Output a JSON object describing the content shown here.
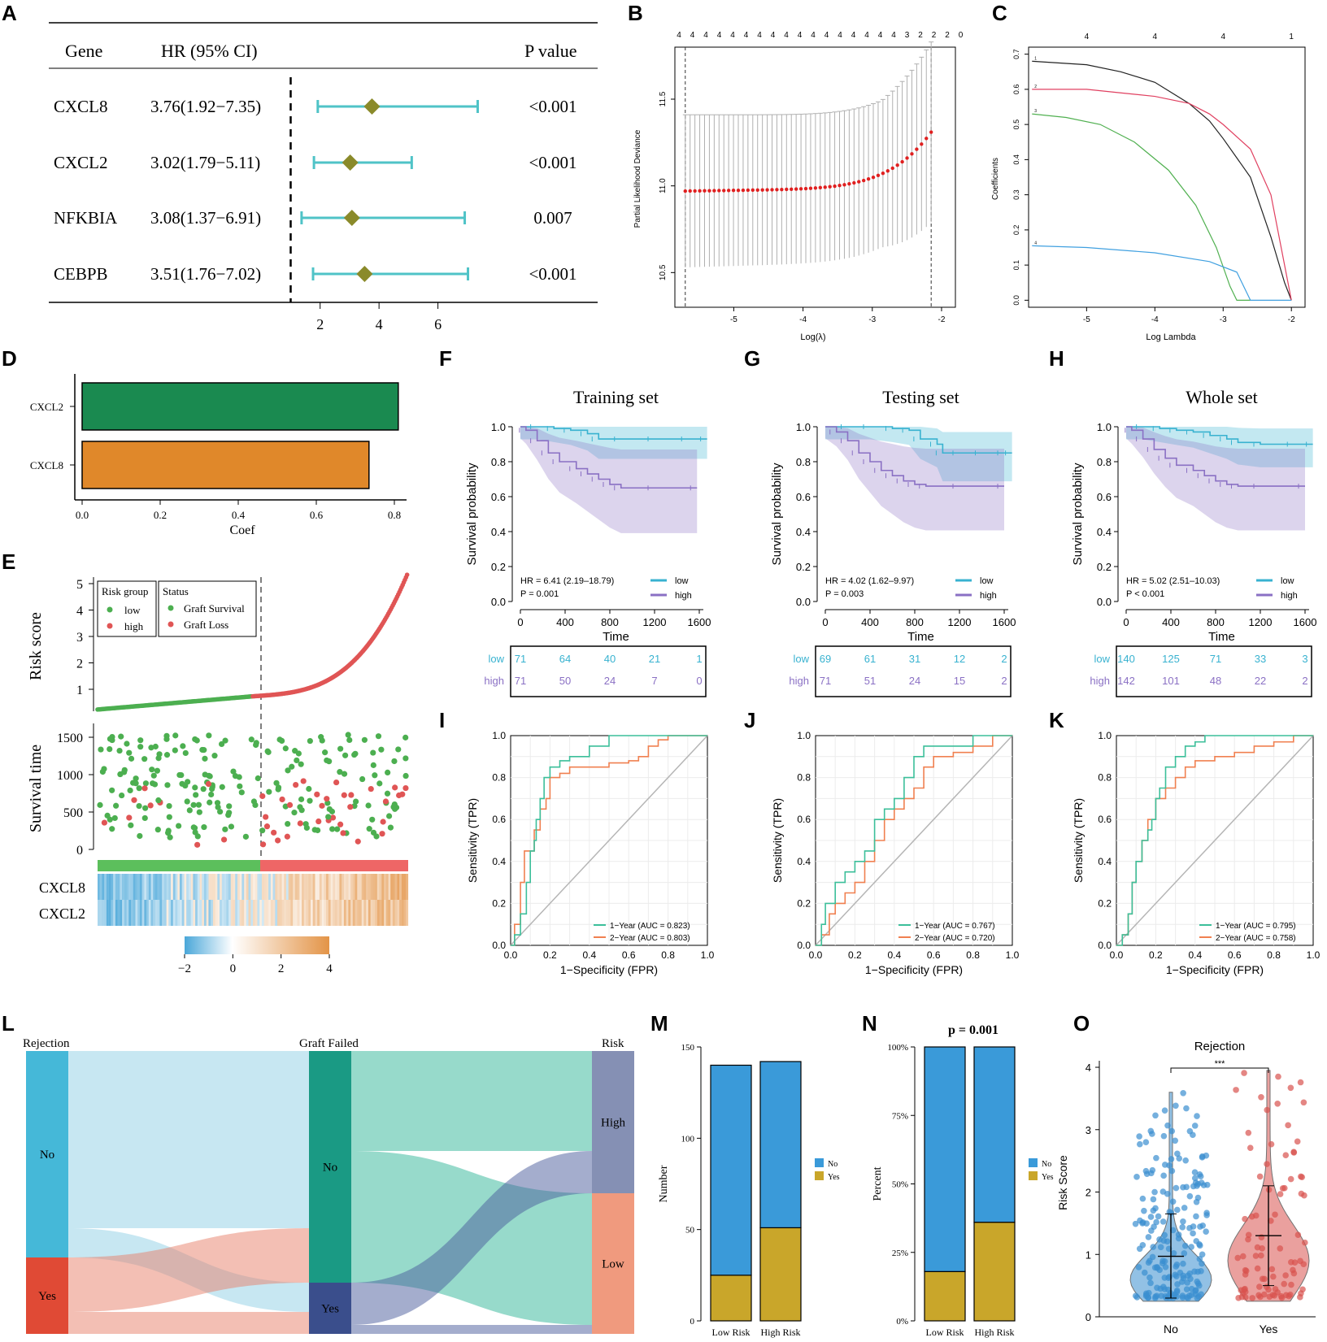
{
  "panel_letters": [
    "A",
    "B",
    "C",
    "D",
    "E",
    "F",
    "G",
    "H",
    "I",
    "J",
    "K",
    "L",
    "M",
    "N",
    "O"
  ],
  "colors": {
    "teal": "#4fc3c7",
    "olive": "#8a8a2a",
    "low_km": "#38b2d0",
    "high_km": "#8a70c4",
    "roc1": "#3cbf9a",
    "roc2": "#f08050",
    "green": "#1a8a50",
    "orange": "#e0882a",
    "pt_green": "#4caf50",
    "pt_red": "#e05555",
    "bar_blue": "#3a9ad9",
    "bar_gold": "#c9a62a",
    "violin_blue": "#3a8fd0",
    "violin_red": "#d9534f"
  },
  "chart_data": [
    {
      "panel": "A",
      "type": "forest",
      "headers": {
        "gene": "Gene",
        "hr": "HR (95% CI)",
        "p": "P value"
      },
      "rows": [
        {
          "gene": "CXCL8",
          "hr_text": "3.76(1.92−7.35)",
          "hr": 3.76,
          "lo": 1.92,
          "hi": 7.35,
          "p": "<0.001"
        },
        {
          "gene": "CXCL2",
          "hr_text": "3.02(1.79−5.11)",
          "hr": 3.02,
          "lo": 1.79,
          "hi": 5.11,
          "p": "<0.001"
        },
        {
          "gene": "NFKBIA",
          "hr_text": "3.08(1.37−6.91)",
          "hr": 3.08,
          "lo": 1.37,
          "hi": 6.91,
          "p": "0.007"
        },
        {
          "gene": "CEBPB",
          "hr_text": "3.51(1.76−7.02)",
          "hr": 3.51,
          "lo": 1.76,
          "hi": 7.02,
          "p": "<0.001"
        }
      ],
      "xticks": [
        2,
        4,
        6
      ],
      "xlim": [
        0.6,
        8.8
      ],
      "ref": 1
    },
    {
      "panel": "B",
      "type": "scatter",
      "xlabel": "Log(λ)",
      "ylabel": "Partial Likelihood Deviance",
      "top_labels": [
        "4",
        "4",
        "4",
        "4",
        "4",
        "4",
        "4",
        "4",
        "4",
        "4",
        "4",
        "4",
        "4",
        "4",
        "4",
        "4",
        "4",
        "3",
        "2",
        "2",
        "2",
        "0"
      ],
      "xticks": [
        -5,
        -4,
        -3,
        -2
      ],
      "yticks": [
        10.5,
        11.0,
        11.5
      ],
      "xlim": [
        -5.85,
        -1.8
      ],
      "ylim": [
        10.3,
        11.8
      ],
      "vlines": [
        -5.7,
        -2.15
      ]
    },
    {
      "panel": "C",
      "type": "line",
      "xlabel": "Log Lambda",
      "ylabel": "Coefficients",
      "top_labels": [
        "4",
        "4",
        "4",
        "1"
      ],
      "top_pos": [
        -5,
        -4,
        -3,
        -2
      ],
      "xticks": [
        -5,
        -4,
        -3,
        -2
      ],
      "yticks": [
        0.0,
        0.1,
        0.2,
        0.3,
        0.4,
        0.5,
        0.6,
        0.7
      ],
      "xlim": [
        -5.85,
        -1.8
      ],
      "ylim": [
        -0.02,
        0.72
      ],
      "series": [
        {
          "name": "1",
          "color": "#222222",
          "x": [
            -5.8,
            -5.0,
            -4.5,
            -4.0,
            -3.5,
            -3.2,
            -3.0,
            -2.6,
            -2.3,
            -2.1,
            -2.0
          ],
          "y": [
            0.68,
            0.67,
            0.65,
            0.62,
            0.56,
            0.51,
            0.46,
            0.35,
            0.18,
            0.05,
            0.0
          ]
        },
        {
          "name": "2",
          "color": "#e04060",
          "x": [
            -5.8,
            -5.0,
            -4.5,
            -4.0,
            -3.5,
            -3.2,
            -3.0,
            -2.6,
            -2.3,
            -2.1,
            -2.0
          ],
          "y": [
            0.6,
            0.6,
            0.59,
            0.58,
            0.56,
            0.53,
            0.5,
            0.43,
            0.3,
            0.1,
            0.0
          ]
        },
        {
          "name": "3",
          "color": "#50b050",
          "x": [
            -5.8,
            -5.3,
            -4.8,
            -4.3,
            -3.8,
            -3.4,
            -3.1,
            -2.9,
            -2.8,
            -2.6
          ],
          "y": [
            0.53,
            0.52,
            0.5,
            0.45,
            0.37,
            0.27,
            0.15,
            0.04,
            0.0,
            0.0
          ]
        },
        {
          "name": "4",
          "color": "#40a0e0",
          "x": [
            -5.8,
            -5.0,
            -4.0,
            -3.2,
            -2.8,
            -2.6,
            -2.2,
            -2.0
          ],
          "y": [
            0.155,
            0.15,
            0.135,
            0.11,
            0.08,
            0.0,
            0.0,
            0.0
          ]
        }
      ]
    },
    {
      "panel": "D",
      "type": "bar",
      "categories": [
        "CXCL2",
        "CXCL8"
      ],
      "values": [
        0.81,
        0.735
      ],
      "bar_colors": [
        "#1a8a50",
        "#e0882a"
      ],
      "xlabel": "Coef",
      "xticks": [
        "0.0",
        "0.2",
        "0.4",
        "0.6",
        "0.8"
      ],
      "xlim": [
        0,
        0.83
      ]
    },
    {
      "panel": "E",
      "type": "risk-plot",
      "ylabel_top": "Risk score",
      "ylabel_mid": "Survival time",
      "yticks_top": [
        "1",
        "2",
        "3",
        "4",
        "5"
      ],
      "yticks_mid": [
        "0",
        "500",
        "1000",
        "1500"
      ],
      "legend_risk_title": "Risk group",
      "legend_risk": [
        "low",
        "high"
      ],
      "legend_status_title": "Status",
      "legend_status": [
        "Graft Survival",
        "Graft Loss"
      ],
      "genes": [
        "CXCL8",
        "CXCL2"
      ],
      "colorbar_ticks": [
        "−2",
        "0",
        "2",
        "4"
      ]
    },
    {
      "panel": "F",
      "type": "km",
      "title": "Training set",
      "hr_text": "HR = 6.41 (2.19–18.79)",
      "p_text": "P = 0.001",
      "xlabel": "Time",
      "ylabel": "Survival probability",
      "xticks": [
        "0",
        "400",
        "800",
        "1200",
        "1600"
      ],
      "yticks": [
        "0.0",
        "0.2",
        "0.4",
        "0.6",
        "0.8",
        "1.0"
      ],
      "legend": [
        "low",
        "high"
      ],
      "low_curve": {
        "t": [
          0,
          150,
          300,
          450,
          600,
          700,
          900,
          1200,
          1500,
          1670
        ],
        "s": [
          1,
          1,
          0.99,
          0.98,
          0.96,
          0.93,
          0.93,
          0.93,
          0.93,
          0.93
        ]
      },
      "high_curve": {
        "t": [
          0,
          50,
          150,
          250,
          350,
          500,
          600,
          700,
          800,
          900,
          1200,
          1580
        ],
        "s": [
          1,
          0.98,
          0.92,
          0.85,
          0.8,
          0.76,
          0.73,
          0.7,
          0.67,
          0.65,
          0.65,
          0.65
        ]
      },
      "risk_table": {
        "low": [
          "71",
          "64",
          "40",
          "21",
          "1"
        ],
        "high": [
          "71",
          "50",
          "24",
          "7",
          "0"
        ]
      }
    },
    {
      "panel": "G",
      "type": "km",
      "title": "Testing set",
      "hr_text": "HR = 4.02 (1.62–9.97)",
      "p_text": "P = 0.003",
      "xlabel": "Time",
      "ylabel": "Survival probability",
      "xticks": [
        "0",
        "400",
        "800",
        "1200",
        "1600"
      ],
      "yticks": [
        "0.0",
        "0.2",
        "0.4",
        "0.6",
        "0.8",
        "1.0"
      ],
      "legend": [
        "low",
        "high"
      ],
      "low_curve": {
        "t": [
          0,
          200,
          400,
          600,
          750,
          850,
          1000,
          1050,
          1200,
          1400,
          1600,
          1670
        ],
        "s": [
          1,
          1,
          1,
          0.99,
          0.98,
          0.93,
          0.9,
          0.85,
          0.85,
          0.85,
          0.85,
          0.85
        ]
      },
      "high_curve": {
        "t": [
          0,
          100,
          200,
          300,
          400,
          500,
          600,
          700,
          800,
          900,
          1200,
          1600
        ],
        "s": [
          1,
          0.97,
          0.92,
          0.85,
          0.8,
          0.75,
          0.72,
          0.69,
          0.67,
          0.66,
          0.66,
          0.66
        ]
      },
      "risk_table": {
        "low": [
          "69",
          "61",
          "31",
          "12",
          "2"
        ],
        "high": [
          "71",
          "51",
          "24",
          "15",
          "2"
        ]
      }
    },
    {
      "panel": "H",
      "type": "km",
      "title": "Whole set",
      "hr_text": "HR = 5.02 (2.51–10.03)",
      "p_text": "P < 0.001",
      "xlabel": "Time",
      "ylabel": "Survival probability",
      "xticks": [
        "0",
        "400",
        "800",
        "1200",
        "1600"
      ],
      "yticks": [
        "0.0",
        "0.2",
        "0.4",
        "0.6",
        "0.8",
        "1.0"
      ],
      "legend": [
        "low",
        "high"
      ],
      "low_curve": {
        "t": [
          0,
          150,
          300,
          450,
          600,
          750,
          900,
          1000,
          1200,
          1500,
          1670
        ],
        "s": [
          1,
          1,
          0.99,
          0.98,
          0.97,
          0.95,
          0.93,
          0.91,
          0.9,
          0.9,
          0.9
        ]
      },
      "high_curve": {
        "t": [
          0,
          50,
          150,
          250,
          350,
          450,
          600,
          700,
          800,
          900,
          1000,
          1200,
          1600
        ],
        "s": [
          1,
          0.98,
          0.93,
          0.87,
          0.82,
          0.78,
          0.75,
          0.72,
          0.69,
          0.67,
          0.66,
          0.66,
          0.66
        ]
      },
      "risk_table": {
        "low": [
          "140",
          "125",
          "71",
          "33",
          "3"
        ],
        "high": [
          "142",
          "101",
          "48",
          "22",
          "2"
        ]
      }
    },
    {
      "panel": "I",
      "type": "roc",
      "xlabel": "1−Specificity (FPR)",
      "ylabel": "Sensitivity (TPR)",
      "ticks": [
        "0.0",
        "0.2",
        "0.4",
        "0.6",
        "0.8",
        "1.0"
      ],
      "legend": [
        "1−Year (AUC = 0.823)",
        "2−Year (AUC = 0.803)"
      ],
      "roc1": {
        "fpr": [
          0,
          0.02,
          0.05,
          0.08,
          0.1,
          0.12,
          0.13,
          0.15,
          0.17,
          0.2,
          0.25,
          0.3,
          0.35,
          0.4,
          0.45,
          0.5,
          0.6,
          0.7,
          1
        ],
        "tpr": [
          0,
          0.05,
          0.15,
          0.3,
          0.45,
          0.5,
          0.6,
          0.7,
          0.8,
          0.85,
          0.88,
          0.9,
          0.9,
          0.95,
          0.95,
          1,
          1,
          1,
          1
        ]
      },
      "roc2": {
        "fpr": [
          0,
          0.02,
          0.05,
          0.07,
          0.1,
          0.12,
          0.15,
          0.18,
          0.2,
          0.25,
          0.3,
          0.4,
          0.5,
          0.6,
          0.65,
          0.7,
          0.75,
          0.8,
          1
        ],
        "tpr": [
          0,
          0.1,
          0.3,
          0.45,
          0.45,
          0.55,
          0.65,
          0.7,
          0.8,
          0.82,
          0.85,
          0.85,
          0.87,
          0.88,
          0.9,
          0.95,
          0.98,
          1,
          1
        ]
      }
    },
    {
      "panel": "J",
      "type": "roc",
      "xlabel": "1−Specificity (FPR)",
      "ylabel": "Sensitivity (TPR)",
      "ticks": [
        "0.0",
        "0.2",
        "0.4",
        "0.6",
        "0.8",
        "1.0"
      ],
      "legend": [
        "1−Year (AUC = 0.767)",
        "2−Year (AUC = 0.720)"
      ],
      "roc1": {
        "fpr": [
          0,
          0.03,
          0.05,
          0.1,
          0.15,
          0.2,
          0.25,
          0.3,
          0.35,
          0.4,
          0.45,
          0.5,
          0.55,
          0.6,
          0.7,
          0.8,
          1
        ],
        "tpr": [
          0,
          0.1,
          0.2,
          0.3,
          0.35,
          0.4,
          0.45,
          0.6,
          0.65,
          0.7,
          0.8,
          0.9,
          0.95,
          0.95,
          0.95,
          1,
          1
        ]
      },
      "roc2": {
        "fpr": [
          0,
          0.03,
          0.07,
          0.1,
          0.15,
          0.2,
          0.25,
          0.3,
          0.35,
          0.4,
          0.45,
          0.5,
          0.55,
          0.6,
          0.7,
          0.8,
          0.9,
          1
        ],
        "tpr": [
          0,
          0.05,
          0.15,
          0.2,
          0.25,
          0.3,
          0.4,
          0.5,
          0.6,
          0.65,
          0.7,
          0.75,
          0.85,
          0.9,
          0.92,
          0.95,
          1,
          1
        ]
      }
    },
    {
      "panel": "K",
      "type": "roc",
      "xlabel": "1−Specificity (FPR)",
      "ylabel": "Sensitivity (TPR)",
      "ticks": [
        "0.0",
        "0.2",
        "0.4",
        "0.6",
        "0.8",
        "1.0"
      ],
      "legend": [
        "1−Year (AUC = 0.795)",
        "2−Year (AUC = 0.758)"
      ],
      "roc1": {
        "fpr": [
          0,
          0.03,
          0.06,
          0.08,
          0.1,
          0.13,
          0.16,
          0.18,
          0.2,
          0.22,
          0.25,
          0.3,
          0.35,
          0.4,
          0.45,
          0.5,
          0.6,
          0.7,
          1
        ],
        "tpr": [
          0,
          0.05,
          0.15,
          0.3,
          0.4,
          0.5,
          0.55,
          0.6,
          0.7,
          0.75,
          0.85,
          0.9,
          0.95,
          0.97,
          1,
          1,
          1,
          1,
          1
        ]
      },
      "roc2": {
        "fpr": [
          0,
          0.03,
          0.06,
          0.08,
          0.1,
          0.13,
          0.16,
          0.2,
          0.25,
          0.3,
          0.35,
          0.4,
          0.5,
          0.6,
          0.7,
          0.8,
          0.9,
          1
        ],
        "tpr": [
          0,
          0.05,
          0.15,
          0.3,
          0.4,
          0.5,
          0.6,
          0.7,
          0.75,
          0.8,
          0.85,
          0.88,
          0.9,
          0.92,
          0.95,
          0.97,
          1,
          1
        ]
      }
    },
    {
      "panel": "L",
      "type": "sankey",
      "stages": [
        "Rejection",
        "Graft Failed",
        "Risk"
      ],
      "nodes": {
        "rejection": [
          "No",
          "Yes"
        ],
        "graft": [
          "No",
          "Yes"
        ],
        "risk": [
          "High",
          "Low"
        ]
      }
    },
    {
      "panel": "M",
      "type": "stacked-bar",
      "categories": [
        "Low Risk",
        "High Risk"
      ],
      "ylabel": "Number",
      "series": [
        {
          "name": "No",
          "values": [
            115,
            91
          ]
        },
        {
          "name": "Yes",
          "values": [
            25,
            51
          ]
        }
      ],
      "yticks": [
        "0",
        "50",
        "100",
        "150"
      ],
      "ylim": [
        0,
        150
      ]
    },
    {
      "panel": "N",
      "type": "stacked-bar-percent",
      "title": "p = 0.001",
      "categories": [
        "Low Risk",
        "High Risk"
      ],
      "ylabel": "Percent",
      "series": [
        {
          "name": "No",
          "values": [
            82,
            64
          ]
        },
        {
          "name": "Yes",
          "values": [
            18,
            36
          ]
        }
      ],
      "yticks": [
        "0%",
        "25%",
        "50%",
        "75%",
        "100%"
      ],
      "ylim": [
        0,
        100
      ]
    },
    {
      "panel": "O",
      "type": "violin",
      "title": "Rejection",
      "categories": [
        "No",
        "Yes"
      ],
      "ylabel": "Risk Score",
      "yticks": [
        "0",
        "1",
        "2",
        "3",
        "4"
      ],
      "ylim": [
        0,
        4.3
      ],
      "sig": "***",
      "median": [
        0.97,
        1.3
      ],
      "lo": [
        0.3,
        0.5
      ],
      "hi": [
        1.65,
        2.1
      ]
    }
  ]
}
